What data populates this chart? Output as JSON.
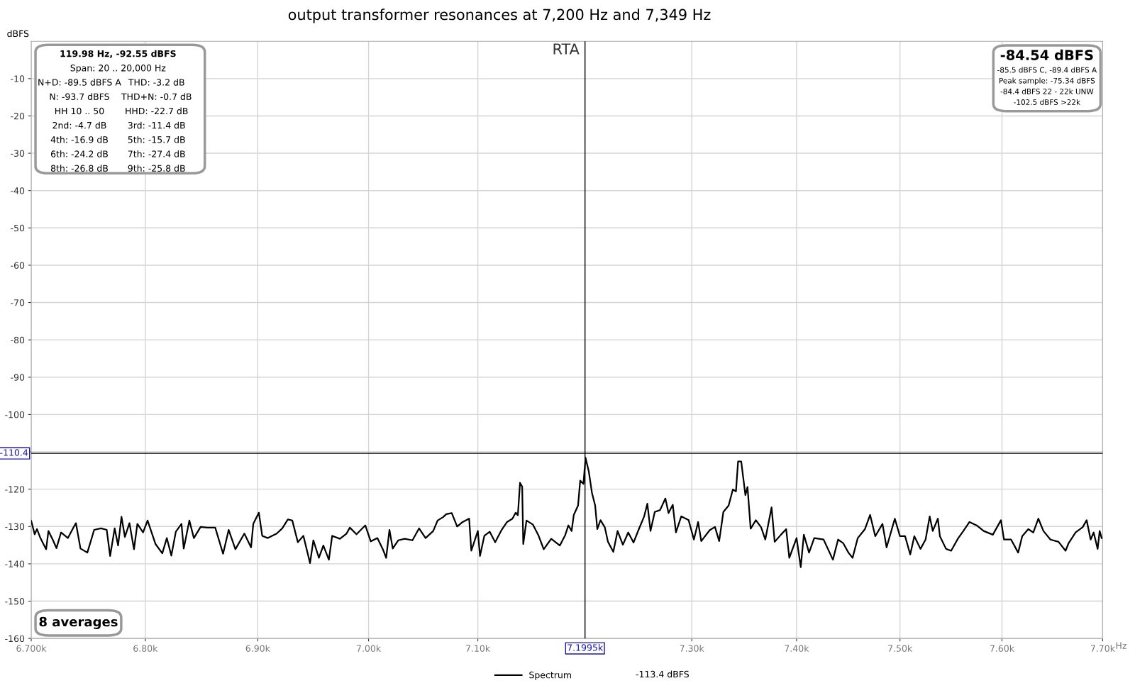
{
  "chart_data": {
    "type": "line",
    "title": "output transformer resonances at 7,200 Hz and 7,349 Hz",
    "ylabel": "dBFS",
    "log": "x",
    "grid": true,
    "legend": "bottom",
    "marker": "none",
    "line_style": "solid",
    "xlim": [
      6700,
      7700
    ],
    "xticks": [
      {
        "value": 6700,
        "label": "6.700k"
      },
      {
        "value": 6800,
        "label": "6.80k"
      },
      {
        "value": 6900,
        "label": "6.90k"
      },
      {
        "value": 7000,
        "label": "7.00k"
      },
      {
        "value": 7100,
        "label": "7.10k"
      },
      {
        "value": 7300,
        "label": "7.30k"
      },
      {
        "value": 7400,
        "label": "7.40k"
      },
      {
        "value": 7500,
        "label": "7.50k"
      },
      {
        "value": 7600,
        "label": "7.60k"
      },
      {
        "value": 7700,
        "label": "7.70k"
      }
    ],
    "xlabel": "Hz",
    "ylim": [
      -160,
      0
    ],
    "yticks": [
      -10,
      -20,
      -30,
      -40,
      -50,
      -60,
      -70,
      -80,
      -90,
      -100,
      {
        "value": -110,
        "label": null
      },
      -120,
      -130,
      -140,
      -150,
      -160
    ],
    "ref_lines": [
      {
        "axis": "x",
        "value": 7199.5,
        "label": "7.1995k",
        "color": "#000000"
      },
      {
        "axis": "y",
        "value": -110.4,
        "label": "-110.4",
        "color": "#000000"
      }
    ],
    "annotations": [
      "119.98 Hz, -92.55 dBFS",
      "Span: 20 .. 20,000 Hz",
      "N+D: -89.5 dBFS A",
      "THD: -3.2 dB",
      "N: -93.7 dBFS",
      "THD+N: -0.7 dB",
      "HH 10 .. 50",
      "HHD: -22.7 dB",
      "2nd: -4.7 dB",
      "3rd: -11.4 dB",
      "4th: -16.9 dB",
      "5th: -15.7 dB",
      "6th: -24.2 dB",
      "7th: -27.4 dB",
      "8th: -26.8 dB",
      "9th: -25.8 dB",
      "-84.54 dBFS",
      "-85.5 dBFS C, -89.4 dBFS A",
      "Peak sample: -75.34 dBFS",
      "-84.4 dBFS 22 - 22k UNW",
      "-102.5 dBFS >22k",
      "RTA",
      "8 averages",
      "-113.4 dBFS"
    ],
    "series": [
      {
        "name": "Spectrum",
        "color": "#000000",
        "x": [
          6700,
          6703,
          6705,
          6708,
          6713,
          6715,
          6719,
          6722,
          6726,
          6732,
          6737,
          6739,
          6743,
          6749,
          6755,
          6761,
          6766,
          6769,
          6773,
          6776,
          6779,
          6782,
          6786,
          6790,
          6793,
          6798,
          6802,
          6809,
          6815,
          6819,
          6823,
          6827,
          6832,
          6834,
          6839,
          6843,
          6849,
          6855,
          6862,
          6869,
          6874,
          6880,
          6888,
          6894,
          6896,
          6901,
          6904,
          6909,
          6917,
          6922,
          6927,
          6931,
          6936,
          6941,
          6947,
          6950,
          6955,
          6959,
          6964,
          6967,
          6974,
          6980,
          6983,
          6989,
          6997,
          7002,
          7008,
          7013,
          7016,
          7019,
          7022,
          7027,
          7033,
          7040,
          7046,
          7052,
          7059,
          7063,
          7068,
          7071,
          7076,
          7081,
          7086,
          7092,
          7094,
          7100,
          7102,
          7106,
          7111,
          7116,
          7122,
          7127,
          7132,
          7135,
          7137,
          7139,
          7141,
          7142,
          7145,
          7151,
          7156,
          7161,
          7168,
          7176,
          7181,
          7184,
          7187,
          7189,
          7193,
          7195,
          7198,
          7200,
          7203,
          7206,
          7209,
          7211,
          7214,
          7218,
          7221,
          7226,
          7230,
          7235,
          7240,
          7245,
          7250,
          7255,
          7258,
          7261,
          7265,
          7270,
          7275,
          7278,
          7282,
          7285,
          7290,
          7297,
          7302,
          7306,
          7309,
          7317,
          7322,
          7326,
          7330,
          7335,
          7339,
          7342,
          7344,
          7347,
          7351,
          7353,
          7356,
          7361,
          7366,
          7370,
          7376,
          7379,
          7385,
          7390,
          7393,
          7400,
          7404,
          7407,
          7412,
          7417,
          7426,
          7435,
          7440,
          7445,
          7450,
          7454,
          7459,
          7466,
          7471,
          7476,
          7483,
          7487,
          7495,
          7500,
          7505,
          7510,
          7514,
          7520,
          7525,
          7529,
          7532,
          7537,
          7539,
          7545,
          7550,
          7557,
          7562,
          7568,
          7575,
          7582,
          7591,
          7599,
          7602,
          7609,
          7616,
          7620,
          7626,
          7631,
          7636,
          7641,
          7648,
          7656,
          7663,
          7666,
          7673,
          7680,
          7684,
          7688,
          7691,
          7695,
          7697,
          7699
        ],
        "values": [
          -128.5,
          -132.1,
          -130.7,
          -133.1,
          -136.1,
          -131.2,
          -133.7,
          -135.8,
          -131.6,
          -133.1,
          -130.2,
          -129.1,
          -135.9,
          -137.0,
          -130.9,
          -130.5,
          -130.9,
          -137.9,
          -130.5,
          -135.1,
          -127.4,
          -132.8,
          -129.1,
          -136.1,
          -129.3,
          -131.6,
          -128.4,
          -134.7,
          -137.2,
          -133.1,
          -137.8,
          -131.4,
          -129.3,
          -135.9,
          -128.4,
          -133.1,
          -130.1,
          -130.3,
          -130.3,
          -137.3,
          -130.9,
          -136.1,
          -131.9,
          -135.6,
          -129.3,
          -126.3,
          -132.5,
          -133.1,
          -131.9,
          -130.5,
          -128.1,
          -128.4,
          -134.2,
          -132.5,
          -139.8,
          -133.7,
          -138.4,
          -135.1,
          -138.9,
          -132.5,
          -133.3,
          -131.9,
          -130.3,
          -132.1,
          -129.7,
          -134.0,
          -133.1,
          -136.1,
          -138.4,
          -130.9,
          -135.9,
          -133.7,
          -133.3,
          -133.7,
          -130.5,
          -133.1,
          -131.2,
          -128.4,
          -127.5,
          -126.7,
          -126.4,
          -130.0,
          -128.8,
          -127.9,
          -136.5,
          -131.2,
          -137.9,
          -132.5,
          -131.4,
          -134.2,
          -130.9,
          -128.8,
          -127.9,
          -126.3,
          -127.0,
          -118.3,
          -119.3,
          -134.7,
          -128.4,
          -129.5,
          -132.3,
          -136.1,
          -133.3,
          -135.1,
          -132.3,
          -129.7,
          -131.2,
          -126.9,
          -124.4,
          -117.7,
          -118.6,
          -111.6,
          -115.2,
          -121.0,
          -124.4,
          -130.7,
          -128.3,
          -130.2,
          -134.1,
          -136.8,
          -131.2,
          -134.9,
          -131.6,
          -134.3,
          -130.7,
          -127.3,
          -123.9,
          -131.2,
          -126.1,
          -125.6,
          -122.5,
          -126.4,
          -124.2,
          -131.6,
          -127.3,
          -128.3,
          -133.5,
          -128.8,
          -133.9,
          -131.0,
          -130.1,
          -133.9,
          -126.1,
          -124.4,
          -120.1,
          -120.6,
          -112.6,
          -112.6,
          -121.6,
          -119.4,
          -130.6,
          -128.3,
          -130.2,
          -133.5,
          -124.9,
          -134.1,
          -132.2,
          -130.7,
          -138.4,
          -133.1,
          -140.9,
          -132.2,
          -137.0,
          -133.1,
          -133.5,
          -138.9,
          -133.5,
          -134.5,
          -137.0,
          -138.4,
          -133.1,
          -130.7,
          -126.9,
          -132.6,
          -129.3,
          -135.6,
          -127.9,
          -132.6,
          -132.6,
          -137.5,
          -132.6,
          -136.0,
          -133.5,
          -127.3,
          -131.2,
          -127.9,
          -132.6,
          -136.0,
          -136.5,
          -133.1,
          -131.2,
          -128.8,
          -129.7,
          -131.2,
          -132.2,
          -128.3,
          -133.5,
          -133.5,
          -137.0,
          -132.6,
          -130.7,
          -131.6,
          -127.9,
          -131.2,
          -133.5,
          -134.1,
          -136.5,
          -134.5,
          -131.6,
          -130.2,
          -128.3,
          -133.5,
          -131.6,
          -136.0,
          -131.2,
          -133.1
        ]
      }
    ]
  }
}
